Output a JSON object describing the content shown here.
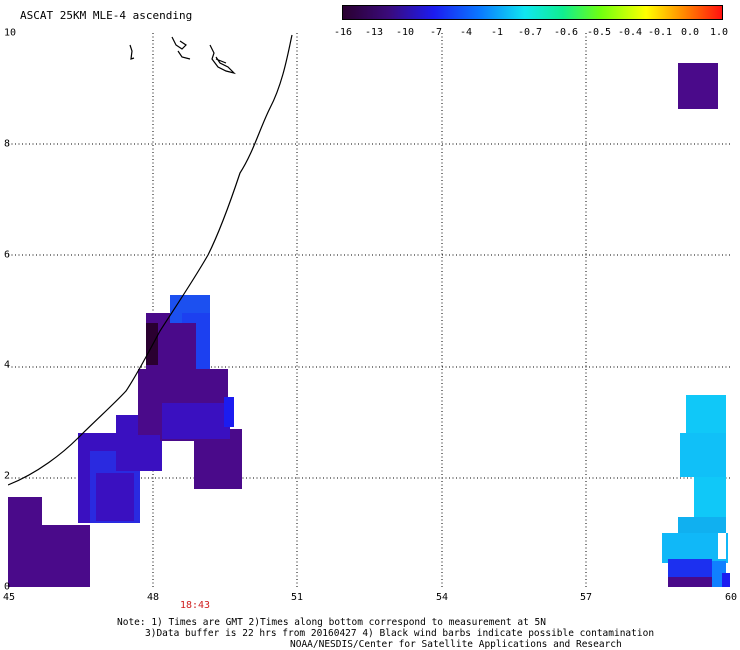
{
  "title": "ASCAT 25KM MLE-4 ascending",
  "colorbar": {
    "ticks": [
      "-16",
      "-13",
      "-10",
      "-7",
      "-4",
      "-1",
      "-0.7",
      "-0.6",
      "-0.5",
      "-0.4",
      "-0.1",
      "0.0",
      "1.0"
    ],
    "colors": [
      "#2a0030",
      "#3a0a7a",
      "#1c1cf0",
      "#0a78ff",
      "#10e6f0",
      "#10ee90",
      "#70ff10",
      "#ffff00",
      "#ff8800",
      "#ff1010"
    ]
  },
  "axes": {
    "x_ticks": [
      "45",
      "48",
      "51",
      "54",
      "57",
      "60"
    ],
    "y_ticks": [
      "0",
      "2",
      "4",
      "6",
      "8",
      "10"
    ]
  },
  "time_label": "18:43",
  "notes": [
    "Note: 1) Times are GMT 2)Times along bottom correspond to measurement at 5N",
    "3)Data buffer is 22 hrs from 20160427 4) Black wind barbs indicate possible contamination",
    "NOAA/NESDIS/Center for Satellite Applications and Research"
  ],
  "colors": {
    "dark_purple": "#2a0030",
    "purple": "#4a0a8a",
    "indigo": "#3a10c0",
    "blue": "#2030f0",
    "light_blue": "#1080ff",
    "cyan": "#10c8f8"
  }
}
